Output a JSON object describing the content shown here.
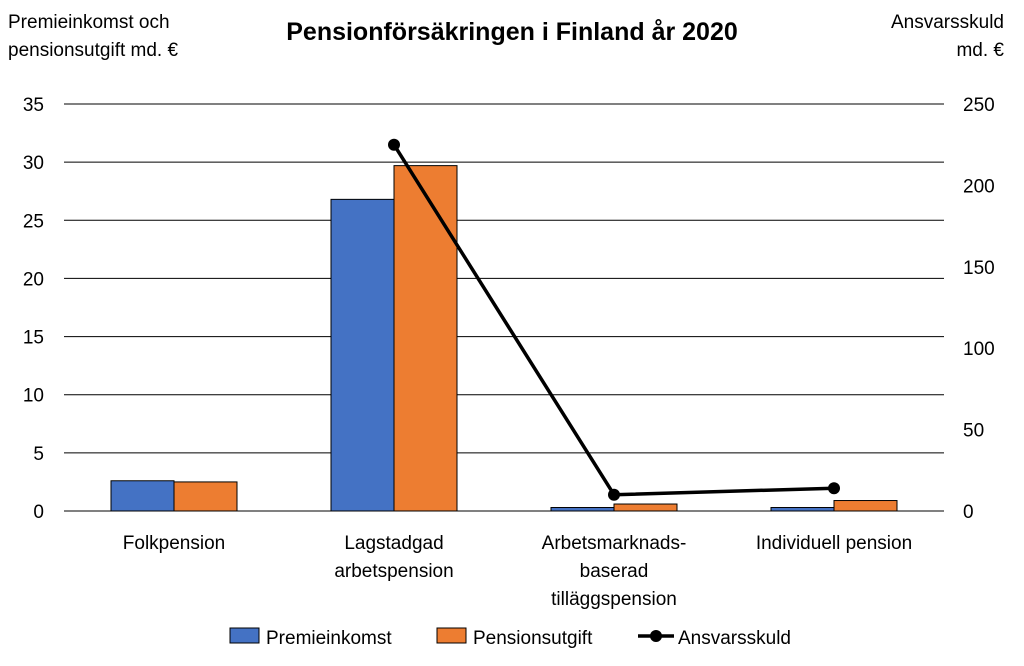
{
  "chart_data": {
    "type": "bar",
    "title": "Pensionförsäkringen i Finland år 2020",
    "ylabel_left": [
      "Premieinkomst och",
      "pensionsutgift md. €"
    ],
    "ylabel_right": [
      "Ansvarsskuld",
      "md. €"
    ],
    "ylim_left": [
      0,
      35
    ],
    "yticks_left": [
      "0",
      "5",
      "10",
      "15",
      "20",
      "25",
      "30",
      "35"
    ],
    "ylim_right": [
      0,
      250
    ],
    "yticks_right": [
      "0",
      "50",
      "100",
      "150",
      "200",
      "250"
    ],
    "grid": true,
    "legend_position": "bottom",
    "categories": [
      [
        "Folkpension"
      ],
      [
        "Lagstadgad",
        "arbetspension"
      ],
      [
        "Arbetsmarknads-",
        "baserad",
        "tilläggspension"
      ],
      [
        "Individuell pension"
      ]
    ],
    "series": [
      {
        "name": "Premieinkomst",
        "type": "bar",
        "axis": "left",
        "color": "#4472C4",
        "values": [
          2.6,
          26.8,
          0.3,
          0.3
        ]
      },
      {
        "name": "Pensionsutgift",
        "type": "bar",
        "axis": "left",
        "color": "#ED7D31",
        "values": [
          2.5,
          29.7,
          0.6,
          0.9
        ]
      },
      {
        "name": "Ansvarsskuld",
        "type": "line",
        "axis": "right",
        "color": "#000000",
        "values": [
          null,
          225,
          10,
          14
        ]
      }
    ]
  }
}
